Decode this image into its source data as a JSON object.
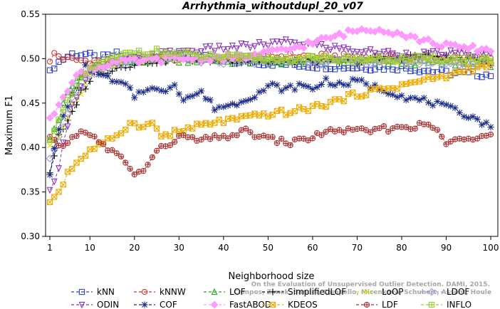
{
  "chart_data": {
    "type": "line",
    "title": "Arrhythmia_withoutdupl_20_v07",
    "xlabel": "Neighborhood size",
    "ylabel": "Maximum F1",
    "xlim": [
      1,
      100
    ],
    "ylim": [
      0.3,
      0.55
    ],
    "x_ticks": [
      "1",
      "10",
      "20",
      "30",
      "40",
      "50",
      "60",
      "70",
      "80",
      "90",
      "100"
    ],
    "y_ticks": [
      "0.30",
      "0.35",
      "0.40",
      "0.45",
      "0.50",
      "0.55"
    ],
    "grid": false,
    "legend_position": "bottom",
    "watermark": "Campos, Zimek, Sander, Campello, Micenkova, Schubert, Assent, Houle\nOn the Evaluation of Unsupervised Outlier Detection. DAMI, 2015.",
    "series": [
      {
        "name": "kNN",
        "color": "#3344cc",
        "marker": "square",
        "dash": "4,3",
        "anchors": [
          [
            1,
            0.484
          ],
          [
            2,
            0.492
          ],
          [
            4,
            0.5
          ],
          [
            6,
            0.505
          ],
          [
            9,
            0.505
          ],
          [
            12,
            0.5
          ],
          [
            16,
            0.505
          ],
          [
            20,
            0.5
          ],
          [
            30,
            0.505
          ],
          [
            40,
            0.498
          ],
          [
            50,
            0.495
          ],
          [
            60,
            0.492
          ],
          [
            70,
            0.49
          ],
          [
            80,
            0.49
          ],
          [
            90,
            0.484
          ],
          [
            100,
            0.482
          ]
        ]
      },
      {
        "name": "kNNW",
        "color": "#cc3333",
        "marker": "circle",
        "dash": "4,3",
        "anchors": [
          [
            1,
            0.495
          ],
          [
            2,
            0.506
          ],
          [
            4,
            0.5
          ],
          [
            8,
            0.498
          ],
          [
            15,
            0.497
          ],
          [
            25,
            0.5
          ],
          [
            40,
            0.5
          ],
          [
            55,
            0.503
          ],
          [
            70,
            0.502
          ],
          [
            85,
            0.501
          ],
          [
            100,
            0.5
          ]
        ]
      },
      {
        "name": "LOF",
        "color": "#22aa22",
        "marker": "triangle",
        "dash": "4,3",
        "anchors": [
          [
            1,
            0.412
          ],
          [
            3,
            0.432
          ],
          [
            5,
            0.462
          ],
          [
            7,
            0.475
          ],
          [
            10,
            0.487
          ],
          [
            13,
            0.493
          ],
          [
            18,
            0.496
          ],
          [
            25,
            0.5
          ],
          [
            35,
            0.498
          ],
          [
            50,
            0.496
          ],
          [
            65,
            0.497
          ],
          [
            80,
            0.496
          ],
          [
            100,
            0.494
          ]
        ]
      },
      {
        "name": "SimplifiedLOF",
        "color": "#000000",
        "marker": "plus",
        "dash": "4,3",
        "anchors": [
          [
            1,
            0.372
          ],
          [
            3,
            0.412
          ],
          [
            5,
            0.428
          ],
          [
            8,
            0.462
          ],
          [
            11,
            0.483
          ],
          [
            15,
            0.488
          ],
          [
            20,
            0.495
          ],
          [
            30,
            0.5
          ],
          [
            40,
            0.498
          ],
          [
            55,
            0.496
          ],
          [
            70,
            0.497
          ],
          [
            85,
            0.504
          ],
          [
            100,
            0.496
          ]
        ]
      },
      {
        "name": "LoOP",
        "color": "#dddd00",
        "marker": "x",
        "dash": "4,3",
        "anchors": [
          [
            1,
            0.4
          ],
          [
            3,
            0.415
          ],
          [
            6,
            0.445
          ],
          [
            10,
            0.482
          ],
          [
            14,
            0.492
          ],
          [
            20,
            0.498
          ],
          [
            35,
            0.5
          ],
          [
            50,
            0.5
          ],
          [
            70,
            0.498
          ],
          [
            100,
            0.496
          ]
        ]
      },
      {
        "name": "LDOF",
        "color": "#9999dd",
        "marker": "diamond",
        "dash": "4,3",
        "anchors": [
          [
            1,
            0.39
          ],
          [
            3,
            0.41
          ],
          [
            6,
            0.455
          ],
          [
            10,
            0.48
          ],
          [
            15,
            0.493
          ],
          [
            25,
            0.498
          ],
          [
            40,
            0.497
          ],
          [
            60,
            0.497
          ],
          [
            80,
            0.496
          ],
          [
            100,
            0.494
          ]
        ]
      },
      {
        "name": "ODIN",
        "color": "#8833bb",
        "marker": "tri-down",
        "dash": "4,3",
        "anchors": [
          [
            1,
            0.35
          ],
          [
            3,
            0.38
          ],
          [
            6,
            0.45
          ],
          [
            10,
            0.485
          ],
          [
            15,
            0.495
          ],
          [
            25,
            0.505
          ],
          [
            35,
            0.51
          ],
          [
            45,
            0.514
          ],
          [
            55,
            0.519
          ],
          [
            62,
            0.514
          ],
          [
            72,
            0.508
          ],
          [
            82,
            0.505
          ],
          [
            92,
            0.506
          ],
          [
            100,
            0.504
          ]
        ]
      },
      {
        "name": "COF",
        "color": "#1a2a88",
        "marker": "asterisk",
        "dash": "4,3",
        "anchors": [
          [
            1,
            0.372
          ],
          [
            3,
            0.42
          ],
          [
            6,
            0.46
          ],
          [
            9,
            0.49
          ],
          [
            12,
            0.485
          ],
          [
            15,
            0.474
          ],
          [
            18,
            0.47
          ],
          [
            20,
            0.458
          ],
          [
            23,
            0.468
          ],
          [
            26,
            0.462
          ],
          [
            29,
            0.472
          ],
          [
            31,
            0.455
          ],
          [
            35,
            0.462
          ],
          [
            38,
            0.445
          ],
          [
            42,
            0.448
          ],
          [
            45,
            0.455
          ],
          [
            48,
            0.462
          ],
          [
            51,
            0.47
          ],
          [
            54,
            0.465
          ],
          [
            57,
            0.47
          ],
          [
            60,
            0.466
          ],
          [
            63,
            0.476
          ],
          [
            66,
            0.47
          ],
          [
            70,
            0.475
          ],
          [
            74,
            0.468
          ],
          [
            78,
            0.462
          ],
          [
            82,
            0.455
          ],
          [
            86,
            0.452
          ],
          [
            90,
            0.445
          ],
          [
            94,
            0.438
          ],
          [
            97,
            0.432
          ],
          [
            100,
            0.422
          ]
        ]
      },
      {
        "name": "FastABOD",
        "color": "#ff99ff",
        "marker": "diamond-filled",
        "dash": "4,3",
        "anchors": [
          [
            1,
            0.43
          ],
          [
            4,
            0.46
          ],
          [
            8,
            0.485
          ],
          [
            15,
            0.496
          ],
          [
            30,
            0.5
          ],
          [
            45,
            0.502
          ],
          [
            55,
            0.511
          ],
          [
            65,
            0.525
          ],
          [
            70,
            0.532
          ],
          [
            75,
            0.534
          ],
          [
            80,
            0.528
          ],
          [
            85,
            0.52
          ],
          [
            92,
            0.513
          ],
          [
            100,
            0.51
          ]
        ]
      },
      {
        "name": "KDEOS",
        "color": "#eeaa00",
        "marker": "square-x",
        "dash": "4,3",
        "anchors": [
          [
            1,
            0.34
          ],
          [
            3,
            0.35
          ],
          [
            5,
            0.372
          ],
          [
            8,
            0.388
          ],
          [
            11,
            0.4
          ],
          [
            13,
            0.403
          ],
          [
            16,
            0.415
          ],
          [
            18,
            0.422
          ],
          [
            20,
            0.43
          ],
          [
            22,
            0.422
          ],
          [
            24,
            0.428
          ],
          [
            26,
            0.413
          ],
          [
            30,
            0.418
          ],
          [
            35,
            0.425
          ],
          [
            40,
            0.43
          ],
          [
            45,
            0.433
          ],
          [
            50,
            0.438
          ],
          [
            55,
            0.44
          ],
          [
            60,
            0.445
          ],
          [
            65,
            0.452
          ],
          [
            70,
            0.46
          ],
          [
            75,
            0.465
          ],
          [
            80,
            0.47
          ],
          [
            85,
            0.476
          ],
          [
            90,
            0.48
          ],
          [
            95,
            0.488
          ],
          [
            100,
            0.492
          ]
        ]
      },
      {
        "name": "LDF",
        "color": "#aa3333",
        "marker": "circle-plus",
        "dash": "4,3",
        "anchors": [
          [
            1,
            0.41
          ],
          [
            3,
            0.4
          ],
          [
            6,
            0.41
          ],
          [
            9,
            0.42
          ],
          [
            12,
            0.405
          ],
          [
            15,
            0.395
          ],
          [
            18,
            0.385
          ],
          [
            20,
            0.368
          ],
          [
            22,
            0.375
          ],
          [
            25,
            0.395
          ],
          [
            30,
            0.412
          ],
          [
            35,
            0.408
          ],
          [
            40,
            0.412
          ],
          [
            45,
            0.418
          ],
          [
            50,
            0.41
          ],
          [
            55,
            0.405
          ],
          [
            60,
            0.412
          ],
          [
            65,
            0.42
          ],
          [
            70,
            0.418
          ],
          [
            75,
            0.42
          ],
          [
            80,
            0.423
          ],
          [
            85,
            0.425
          ],
          [
            88,
            0.42
          ],
          [
            90,
            0.405
          ],
          [
            95,
            0.41
          ],
          [
            100,
            0.418
          ]
        ]
      },
      {
        "name": "INFLO",
        "color": "#99cc33",
        "marker": "square-cross",
        "dash": "4,3",
        "anchors": [
          [
            1,
            0.412
          ],
          [
            3,
            0.43
          ],
          [
            6,
            0.46
          ],
          [
            10,
            0.49
          ],
          [
            15,
            0.5
          ],
          [
            20,
            0.508
          ],
          [
            25,
            0.508
          ],
          [
            35,
            0.503
          ],
          [
            50,
            0.5
          ],
          [
            65,
            0.5
          ],
          [
            80,
            0.5
          ],
          [
            100,
            0.5
          ]
        ]
      }
    ]
  }
}
